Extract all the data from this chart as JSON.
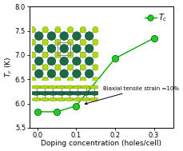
{
  "x": [
    0.0,
    0.05,
    0.1,
    0.2,
    0.3
  ],
  "y": [
    5.83,
    5.83,
    5.95,
    6.93,
    7.35
  ],
  "line_color": "#00aa00",
  "marker_facecolor": "#22cc22",
  "marker_edgecolor": "#005500",
  "marker_size": 6,
  "xlabel": "Doping concentration (holes/cell)",
  "ylabel": "$T_c$ (K)",
  "xlim": [
    -0.02,
    0.35
  ],
  "ylim": [
    5.5,
    8.0
  ],
  "xticks": [
    0.0,
    0.1,
    0.2,
    0.3
  ],
  "yticks": [
    5.5,
    6.0,
    6.5,
    7.0,
    7.5,
    8.0
  ],
  "legend_label": "$T_c$",
  "annotation_text": "Biaxial tensile strain =10%",
  "axis_fontsize": 6.5,
  "tick_fontsize": 6.0,
  "legend_fontsize": 7.0,
  "teal_color": "#1a6b45",
  "teal_edge": "#003322",
  "lime_color": "#aadd00",
  "lime_edge": "#777700",
  "bond_color": "#555555"
}
